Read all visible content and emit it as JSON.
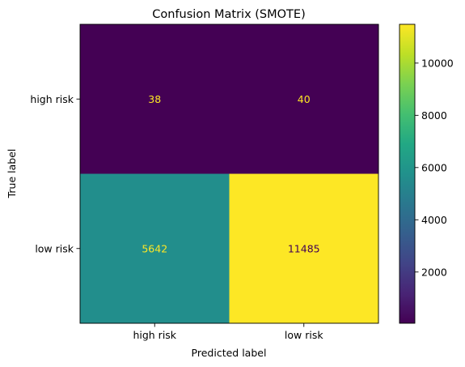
{
  "chart_data": {
    "type": "heatmap",
    "title": "Confusion Matrix (SMOTE)",
    "xlabel": "Predicted label",
    "ylabel": "True label",
    "x_categories": [
      "high risk",
      "low risk"
    ],
    "y_categories": [
      "high risk",
      "low risk"
    ],
    "values": [
      [
        38,
        40
      ],
      [
        5642,
        11485
      ]
    ],
    "value_labels": [
      [
        "38",
        "40"
      ],
      [
        "5642",
        "11485"
      ]
    ],
    "colormap": "viridis",
    "colorbar": {
      "range": [
        38,
        11485
      ],
      "ticks": [
        2000,
        4000,
        6000,
        8000,
        10000
      ],
      "tick_labels": [
        "2000",
        "4000",
        "6000",
        "8000",
        "10000"
      ]
    },
    "colors": {
      "low_text": "#fde725",
      "high_text": "#440154"
    }
  }
}
